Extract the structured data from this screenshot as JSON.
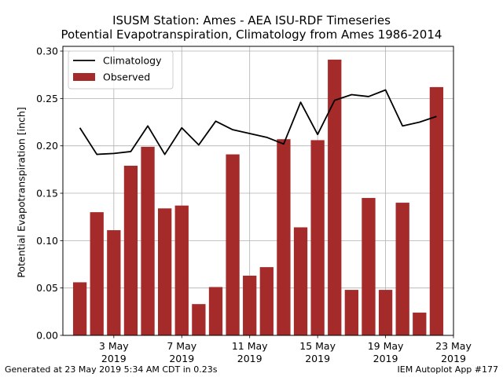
{
  "footer": {
    "generated": "Generated at 23 May 2019 5:34 AM CDT in 0.23s",
    "app": "IEM Autoplot App #177"
  },
  "colors": {
    "bar": "#a52a2a",
    "line": "#000000",
    "grid": "#b0b0b0"
  },
  "chart_data": {
    "type": "bar",
    "title": "ISUSM Station: Ames - AEA ISU-RDF Timeseries",
    "subtitle": "Potential Evapotranspiration, Climatology from Ames 1986-2014",
    "xlabel": "",
    "ylabel": "Potential Evapotranspiration [inch]",
    "ylim": [
      0,
      0.305
    ],
    "xlim": [
      "2019-04-30",
      "2019-05-23"
    ],
    "grid": true,
    "legend_position": "top-left",
    "x": [
      "2019-05-01",
      "2019-05-02",
      "2019-05-03",
      "2019-05-04",
      "2019-05-05",
      "2019-05-06",
      "2019-05-07",
      "2019-05-08",
      "2019-05-09",
      "2019-05-10",
      "2019-05-11",
      "2019-05-12",
      "2019-05-13",
      "2019-05-14",
      "2019-05-15",
      "2019-05-16",
      "2019-05-17",
      "2019-05-18",
      "2019-05-19",
      "2019-05-20",
      "2019-05-21",
      "2019-05-22"
    ],
    "x_ticks": [
      {
        "date": "2019-05-03",
        "label": [
          "3 May",
          "2019"
        ]
      },
      {
        "date": "2019-05-07",
        "label": [
          "7 May",
          "2019"
        ]
      },
      {
        "date": "2019-05-11",
        "label": [
          "11 May",
          "2019"
        ]
      },
      {
        "date": "2019-05-15",
        "label": [
          "15 May",
          "2019"
        ]
      },
      {
        "date": "2019-05-19",
        "label": [
          "19 May",
          "2019"
        ]
      },
      {
        "date": "2019-05-23",
        "label": [
          "23 May",
          "2019"
        ]
      }
    ],
    "y_ticks": [
      0.0,
      0.05,
      0.1,
      0.15,
      0.2,
      0.25,
      0.3
    ],
    "y_tick_labels": [
      "0.00",
      "0.05",
      "0.10",
      "0.15",
      "0.20",
      "0.25",
      "0.30"
    ],
    "series": [
      {
        "name": "Climatology",
        "kind": "line",
        "color": "#000000",
        "values": [
          0.219,
          0.191,
          0.192,
          0.194,
          0.221,
          0.191,
          0.219,
          0.201,
          0.226,
          0.217,
          0.213,
          0.209,
          0.202,
          0.246,
          0.212,
          0.248,
          0.254,
          0.252,
          0.259,
          0.221,
          0.225,
          0.231
        ]
      },
      {
        "name": "Observed",
        "kind": "bar",
        "color": "#a52a2a",
        "values": [
          0.056,
          0.13,
          0.111,
          0.179,
          0.199,
          0.134,
          0.137,
          0.033,
          0.051,
          0.191,
          0.063,
          0.072,
          0.207,
          0.114,
          0.206,
          0.291,
          0.048,
          0.145,
          0.048,
          0.14,
          0.024,
          0.262
        ]
      }
    ]
  }
}
